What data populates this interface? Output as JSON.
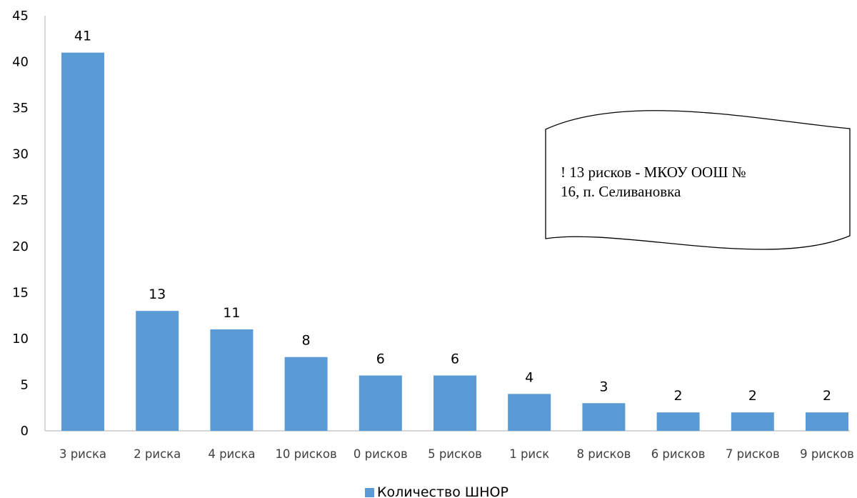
{
  "chart_data": {
    "type": "bar",
    "categories": [
      "3 риска",
      "2 риска",
      "4 риска",
      "10 рисков",
      "0 рисков",
      "5 рисков",
      "1 риск",
      "8 рисков",
      "6 рисков",
      "7 рисков",
      "9 рисков"
    ],
    "series": [
      {
        "name": "Количество ШНОР",
        "values": [
          41,
          13,
          11,
          8,
          6,
          6,
          4,
          3,
          2,
          2,
          2
        ],
        "color": "#5b9bd5"
      }
    ],
    "data_labels": [
      "41",
      "13",
      "11",
      "8",
      "6",
      "6",
      "4",
      "3",
      "2",
      "2",
      "2"
    ],
    "ylim": [
      0,
      45
    ],
    "y_ticks": [
      "0",
      "5",
      "10",
      "15",
      "20",
      "25",
      "30",
      "35",
      "40",
      "45"
    ],
    "grid": false,
    "legend_position": "bottom",
    "annotation": {
      "shape": "wave-banner",
      "lines": [
        "! 13 рисков - МКОУ ООШ №",
        "16, п. Селивановка"
      ]
    }
  }
}
